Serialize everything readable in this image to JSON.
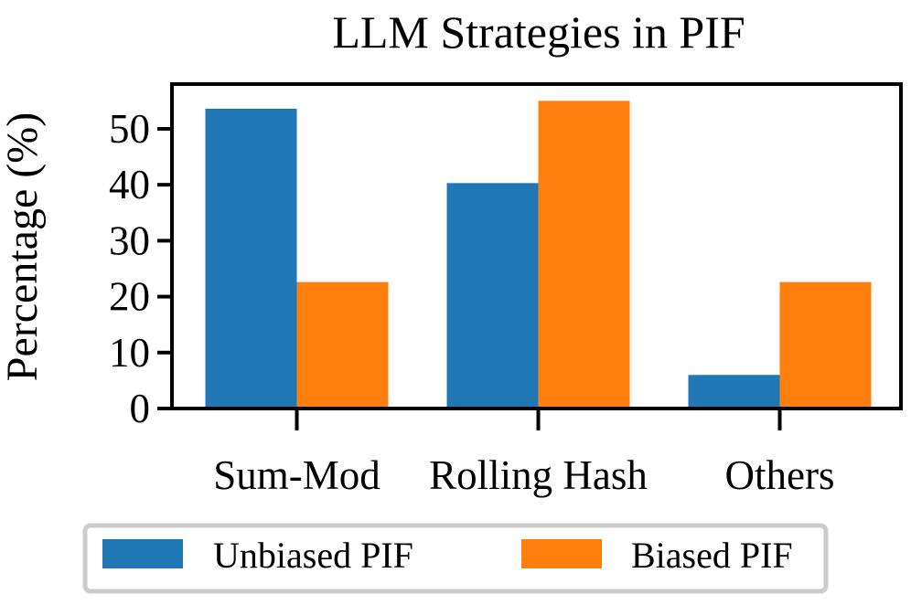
{
  "chart_data": {
    "type": "bar",
    "title": "LLM Strategies in PIF",
    "xlabel": "",
    "ylabel": "Percentage (%)",
    "categories": [
      "Sum-Mod",
      "Rolling Hash",
      "Others"
    ],
    "series": [
      {
        "name": "Unbiased PIF",
        "values": [
          53.6,
          40.3,
          6.0
        ],
        "color": "#1f77b4"
      },
      {
        "name": "Biased PIF",
        "values": [
          22.6,
          55.0,
          22.6
        ],
        "color": "#ff7f0e"
      }
    ],
    "ylim": [
      0,
      58
    ],
    "yticks": [
      0,
      10,
      20,
      30,
      40,
      50
    ],
    "grid": false,
    "legend_position": "bottom-center"
  }
}
